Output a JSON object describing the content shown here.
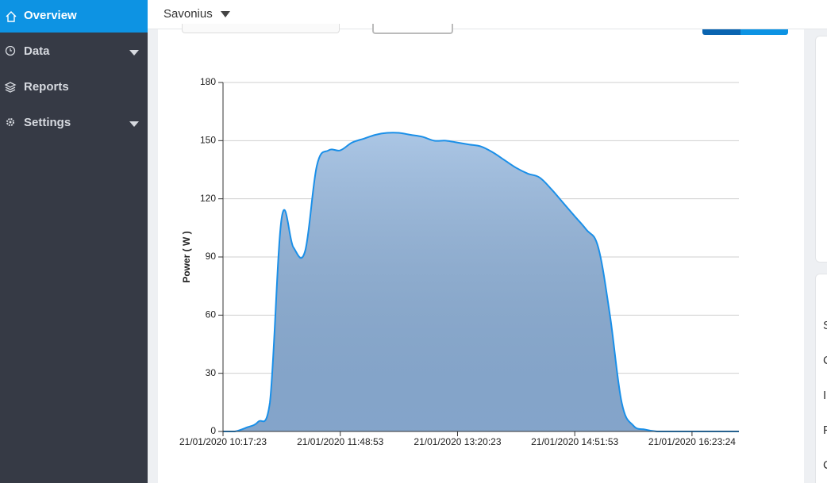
{
  "sidebar": {
    "items": [
      "Overview",
      "Data",
      "Reports",
      "Settings"
    ]
  },
  "header": {
    "selector": "Savonius"
  },
  "side_panel": {
    "labels": [
      "S",
      "C",
      "I",
      "P",
      "C"
    ]
  },
  "chart_data": {
    "type": "area",
    "y_label": "Power ( W )",
    "color": "#1a8fe8",
    "fill": "#8fb3dc",
    "categories": [
      "21/01/2020 10:17:23",
      null,
      null,
      null,
      null,
      null,
      null,
      null,
      null,
      null,
      "21/01/2020 11:48:53",
      null,
      null,
      null,
      null,
      null,
      null,
      null,
      null,
      null,
      "21/01/2020 13:20:23",
      null,
      null,
      null,
      null,
      null,
      null,
      null,
      null,
      null,
      "21/01/2020 14:51:53",
      null,
      null,
      null,
      null,
      null,
      null,
      null,
      null,
      null,
      "21/01/2020 16:23:24",
      null,
      null,
      null,
      null
    ],
    "values": [
      0,
      0,
      2,
      5,
      15,
      110,
      95,
      93,
      137,
      145,
      145,
      149,
      151,
      153,
      154,
      154,
      153,
      152,
      150,
      150,
      149,
      148,
      147,
      144,
      140,
      136,
      133,
      131,
      125,
      118,
      111,
      104,
      95,
      60,
      15,
      3,
      1,
      0,
      0,
      0,
      0,
      0,
      0,
      0,
      0
    ],
    "ylim": [
      0,
      180
    ],
    "yticks": [
      0,
      30,
      60,
      90,
      120,
      150,
      180
    ],
    "grid": true
  }
}
